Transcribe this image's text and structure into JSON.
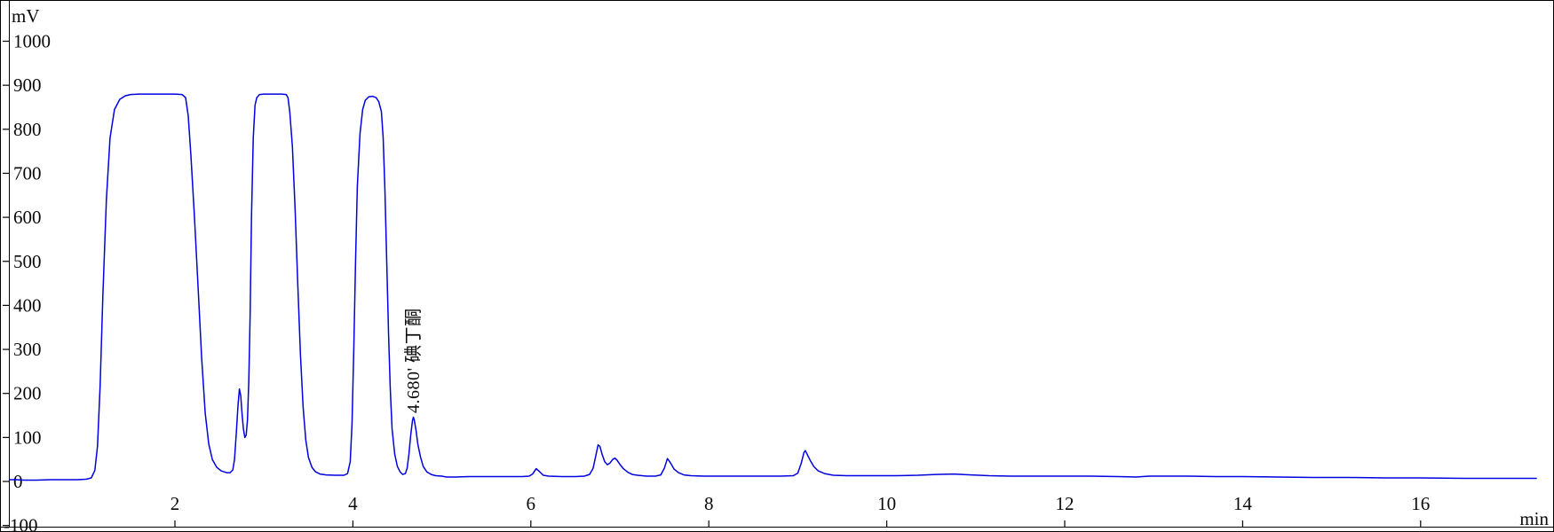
{
  "colors": {
    "trace": "#0000e0",
    "axis": "#000000",
    "frame": "#000000",
    "background": "#ffffff",
    "text": "#0a0a0a"
  },
  "axes": {
    "y": {
      "unit": "mV",
      "ticks": [
        1000,
        900,
        800,
        700,
        600,
        500,
        400,
        300,
        200,
        100,
        0,
        -100
      ]
    },
    "x": {
      "unit": "min",
      "ticks": [
        2,
        4,
        6,
        8,
        10,
        12,
        14,
        16
      ]
    }
  },
  "annotation": {
    "text": "4.680'  碘丁酮",
    "retention_time_min": 4.68
  },
  "chart_data": {
    "type": "line",
    "title": "",
    "xlabel": "min",
    "ylabel": "mV",
    "xlim": [
      0.13,
      17.35
    ],
    "ylim": [
      -100,
      1060
    ],
    "grid": false,
    "legend": false,
    "peaks": [
      {
        "retention_min": 1.8,
        "apex_mV": 880,
        "note": "saturated flat-top peak"
      },
      {
        "retention_min": 2.73,
        "apex_mV": 210
      },
      {
        "retention_min": 3.1,
        "apex_mV": 880,
        "note": "saturated flat-top peak"
      },
      {
        "retention_min": 4.17,
        "apex_mV": 875,
        "note": "saturated flat-top peak"
      },
      {
        "retention_min": 4.68,
        "apex_mV": 146,
        "label": "碘丁酮"
      },
      {
        "retention_min": 6.06,
        "apex_mV": 29
      },
      {
        "retention_min": 6.76,
        "apex_mV": 83
      },
      {
        "retention_min": 6.94,
        "apex_mV": 53
      },
      {
        "retention_min": 7.54,
        "apex_mV": 52
      },
      {
        "retention_min": 9.08,
        "apex_mV": 70
      },
      {
        "retention_min": 10.7,
        "apex_mV": 17,
        "note": "broad low hump"
      }
    ],
    "series": [
      {
        "name": "detector-signal",
        "points": [
          [
            0.14,
            4
          ],
          [
            0.22,
            4
          ],
          [
            0.3,
            3
          ],
          [
            0.45,
            3
          ],
          [
            0.6,
            4
          ],
          [
            0.75,
            4
          ],
          [
            0.9,
            4
          ],
          [
            1.0,
            5
          ],
          [
            1.06,
            8
          ],
          [
            1.1,
            25
          ],
          [
            1.13,
            80
          ],
          [
            1.16,
            220
          ],
          [
            1.19,
            420
          ],
          [
            1.23,
            640
          ],
          [
            1.27,
            780
          ],
          [
            1.32,
            845
          ],
          [
            1.38,
            868
          ],
          [
            1.44,
            876
          ],
          [
            1.5,
            879
          ],
          [
            1.6,
            880
          ],
          [
            1.8,
            880
          ],
          [
            2.0,
            880
          ],
          [
            2.08,
            879
          ],
          [
            2.12,
            872
          ],
          [
            2.15,
            830
          ],
          [
            2.18,
            740
          ],
          [
            2.22,
            600
          ],
          [
            2.26,
            440
          ],
          [
            2.3,
            280
          ],
          [
            2.34,
            155
          ],
          [
            2.38,
            85
          ],
          [
            2.42,
            50
          ],
          [
            2.47,
            32
          ],
          [
            2.52,
            24
          ],
          [
            2.58,
            20
          ],
          [
            2.62,
            20
          ],
          [
            2.65,
            26
          ],
          [
            2.67,
            50
          ],
          [
            2.69,
            110
          ],
          [
            2.71,
            175
          ],
          [
            2.725,
            210
          ],
          [
            2.74,
            195
          ],
          [
            2.755,
            150
          ],
          [
            2.77,
            118
          ],
          [
            2.785,
            100
          ],
          [
            2.8,
            105
          ],
          [
            2.815,
            140
          ],
          [
            2.83,
            230
          ],
          [
            2.845,
            380
          ],
          [
            2.86,
            600
          ],
          [
            2.88,
            780
          ],
          [
            2.9,
            855
          ],
          [
            2.92,
            872
          ],
          [
            2.95,
            879
          ],
          [
            3.0,
            880
          ],
          [
            3.1,
            880
          ],
          [
            3.2,
            880
          ],
          [
            3.25,
            879
          ],
          [
            3.27,
            872
          ],
          [
            3.29,
            840
          ],
          [
            3.32,
            760
          ],
          [
            3.35,
            620
          ],
          [
            3.38,
            450
          ],
          [
            3.41,
            290
          ],
          [
            3.44,
            170
          ],
          [
            3.47,
            95
          ],
          [
            3.5,
            55
          ],
          [
            3.54,
            32
          ],
          [
            3.58,
            22
          ],
          [
            3.63,
            17
          ],
          [
            3.7,
            15
          ],
          [
            3.8,
            14
          ],
          [
            3.9,
            14
          ],
          [
            3.94,
            18
          ],
          [
            3.97,
            45
          ],
          [
            3.99,
            130
          ],
          [
            4.01,
            300
          ],
          [
            4.03,
            500
          ],
          [
            4.05,
            670
          ],
          [
            4.08,
            790
          ],
          [
            4.11,
            845
          ],
          [
            4.14,
            866
          ],
          [
            4.18,
            874
          ],
          [
            4.22,
            875
          ],
          [
            4.26,
            872
          ],
          [
            4.29,
            863
          ],
          [
            4.32,
            840
          ],
          [
            4.34,
            780
          ],
          [
            4.36,
            660
          ],
          [
            4.38,
            500
          ],
          [
            4.4,
            340
          ],
          [
            4.42,
            210
          ],
          [
            4.44,
            120
          ],
          [
            4.47,
            62
          ],
          [
            4.5,
            34
          ],
          [
            4.53,
            22
          ],
          [
            4.56,
            16
          ],
          [
            4.59,
            18
          ],
          [
            4.61,
            30
          ],
          [
            4.63,
            62
          ],
          [
            4.65,
            105
          ],
          [
            4.67,
            138
          ],
          [
            4.68,
            146
          ],
          [
            4.69,
            140
          ],
          [
            4.71,
            116
          ],
          [
            4.73,
            85
          ],
          [
            4.76,
            55
          ],
          [
            4.79,
            34
          ],
          [
            4.83,
            22
          ],
          [
            4.88,
            16
          ],
          [
            4.93,
            13
          ],
          [
            5.0,
            12
          ],
          [
            5.05,
            10
          ],
          [
            5.15,
            10
          ],
          [
            5.3,
            11
          ],
          [
            5.5,
            11
          ],
          [
            5.7,
            11
          ],
          [
            5.9,
            11
          ],
          [
            5.98,
            12
          ],
          [
            6.02,
            17
          ],
          [
            6.06,
            29
          ],
          [
            6.1,
            22
          ],
          [
            6.14,
            14
          ],
          [
            6.2,
            12
          ],
          [
            6.35,
            11
          ],
          [
            6.5,
            11
          ],
          [
            6.6,
            12
          ],
          [
            6.66,
            16
          ],
          [
            6.7,
            30
          ],
          [
            6.73,
            58
          ],
          [
            6.755,
            83
          ],
          [
            6.775,
            80
          ],
          [
            6.8,
            62
          ],
          [
            6.83,
            45
          ],
          [
            6.86,
            38
          ],
          [
            6.89,
            42
          ],
          [
            6.92,
            50
          ],
          [
            6.945,
            53
          ],
          [
            6.97,
            48
          ],
          [
            7.0,
            39
          ],
          [
            7.04,
            29
          ],
          [
            7.09,
            21
          ],
          [
            7.14,
            16
          ],
          [
            7.2,
            14
          ],
          [
            7.3,
            12
          ],
          [
            7.4,
            12
          ],
          [
            7.46,
            15
          ],
          [
            7.5,
            30
          ],
          [
            7.535,
            52
          ],
          [
            7.57,
            42
          ],
          [
            7.61,
            28
          ],
          [
            7.66,
            20
          ],
          [
            7.72,
            15
          ],
          [
            7.8,
            13
          ],
          [
            7.95,
            12
          ],
          [
            8.2,
            12
          ],
          [
            8.5,
            12
          ],
          [
            8.8,
            12
          ],
          [
            8.95,
            13
          ],
          [
            9.0,
            19
          ],
          [
            9.04,
            42
          ],
          [
            9.07,
            66
          ],
          [
            9.085,
            70
          ],
          [
            9.1,
            64
          ],
          [
            9.14,
            48
          ],
          [
            9.18,
            34
          ],
          [
            9.23,
            24
          ],
          [
            9.3,
            18
          ],
          [
            9.4,
            14
          ],
          [
            9.55,
            13
          ],
          [
            9.8,
            13
          ],
          [
            10.1,
            13
          ],
          [
            10.35,
            14
          ],
          [
            10.55,
            16
          ],
          [
            10.75,
            17
          ],
          [
            10.95,
            15
          ],
          [
            11.15,
            13
          ],
          [
            11.4,
            12
          ],
          [
            11.7,
            12
          ],
          [
            12.0,
            12
          ],
          [
            12.3,
            12
          ],
          [
            12.6,
            11
          ],
          [
            12.8,
            10
          ],
          [
            12.95,
            12
          ],
          [
            13.1,
            12
          ],
          [
            13.4,
            12
          ],
          [
            13.7,
            11
          ],
          [
            14.0,
            11
          ],
          [
            14.4,
            10
          ],
          [
            14.8,
            9
          ],
          [
            15.2,
            9
          ],
          [
            15.6,
            8
          ],
          [
            16.0,
            8
          ],
          [
            16.5,
            7
          ],
          [
            17.0,
            7
          ],
          [
            17.3,
            7
          ]
        ]
      }
    ]
  }
}
